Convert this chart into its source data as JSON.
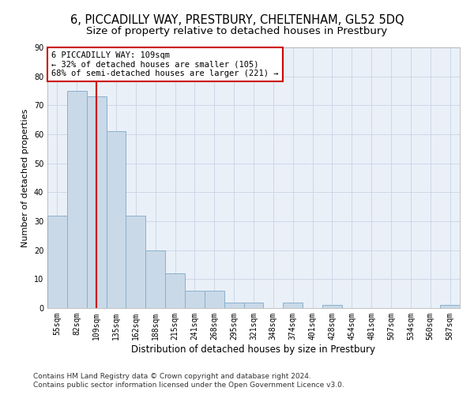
{
  "title1": "6, PICCADILLY WAY, PRESTBURY, CHELTENHAM, GL52 5DQ",
  "title2": "Size of property relative to detached houses in Prestbury",
  "xlabel": "Distribution of detached houses by size in Prestbury",
  "ylabel": "Number of detached properties",
  "categories": [
    "55sqm",
    "82sqm",
    "109sqm",
    "135sqm",
    "162sqm",
    "188sqm",
    "215sqm",
    "241sqm",
    "268sqm",
    "295sqm",
    "321sqm",
    "348sqm",
    "374sqm",
    "401sqm",
    "428sqm",
    "454sqm",
    "481sqm",
    "507sqm",
    "534sqm",
    "560sqm",
    "587sqm"
  ],
  "values": [
    32,
    75,
    73,
    61,
    32,
    20,
    12,
    6,
    6,
    2,
    2,
    0,
    2,
    0,
    1,
    0,
    0,
    0,
    0,
    0,
    1
  ],
  "bar_color": "#c9d9e8",
  "bar_edge_color": "#8ab0cc",
  "marker_index": 2,
  "annotation_lines": [
    "6 PICCADILLY WAY: 109sqm",
    "← 32% of detached houses are smaller (105)",
    "68% of semi-detached houses are larger (221) →"
  ],
  "annotation_box_color": "#ffffff",
  "annotation_box_edge": "#cc0000",
  "vline_color": "#cc0000",
  "background_color": "#ffffff",
  "plot_bg_color": "#eaf0f8",
  "grid_color": "#c8d4e4",
  "ylim": [
    0,
    90
  ],
  "yticks": [
    0,
    10,
    20,
    30,
    40,
    50,
    60,
    70,
    80,
    90
  ],
  "footer1": "Contains HM Land Registry data © Crown copyright and database right 2024.",
  "footer2": "Contains public sector information licensed under the Open Government Licence v3.0.",
  "title1_fontsize": 10.5,
  "title2_fontsize": 9.5,
  "xlabel_fontsize": 8.5,
  "ylabel_fontsize": 8,
  "tick_fontsize": 7,
  "footer_fontsize": 6.5,
  "ann_fontsize": 7.5
}
